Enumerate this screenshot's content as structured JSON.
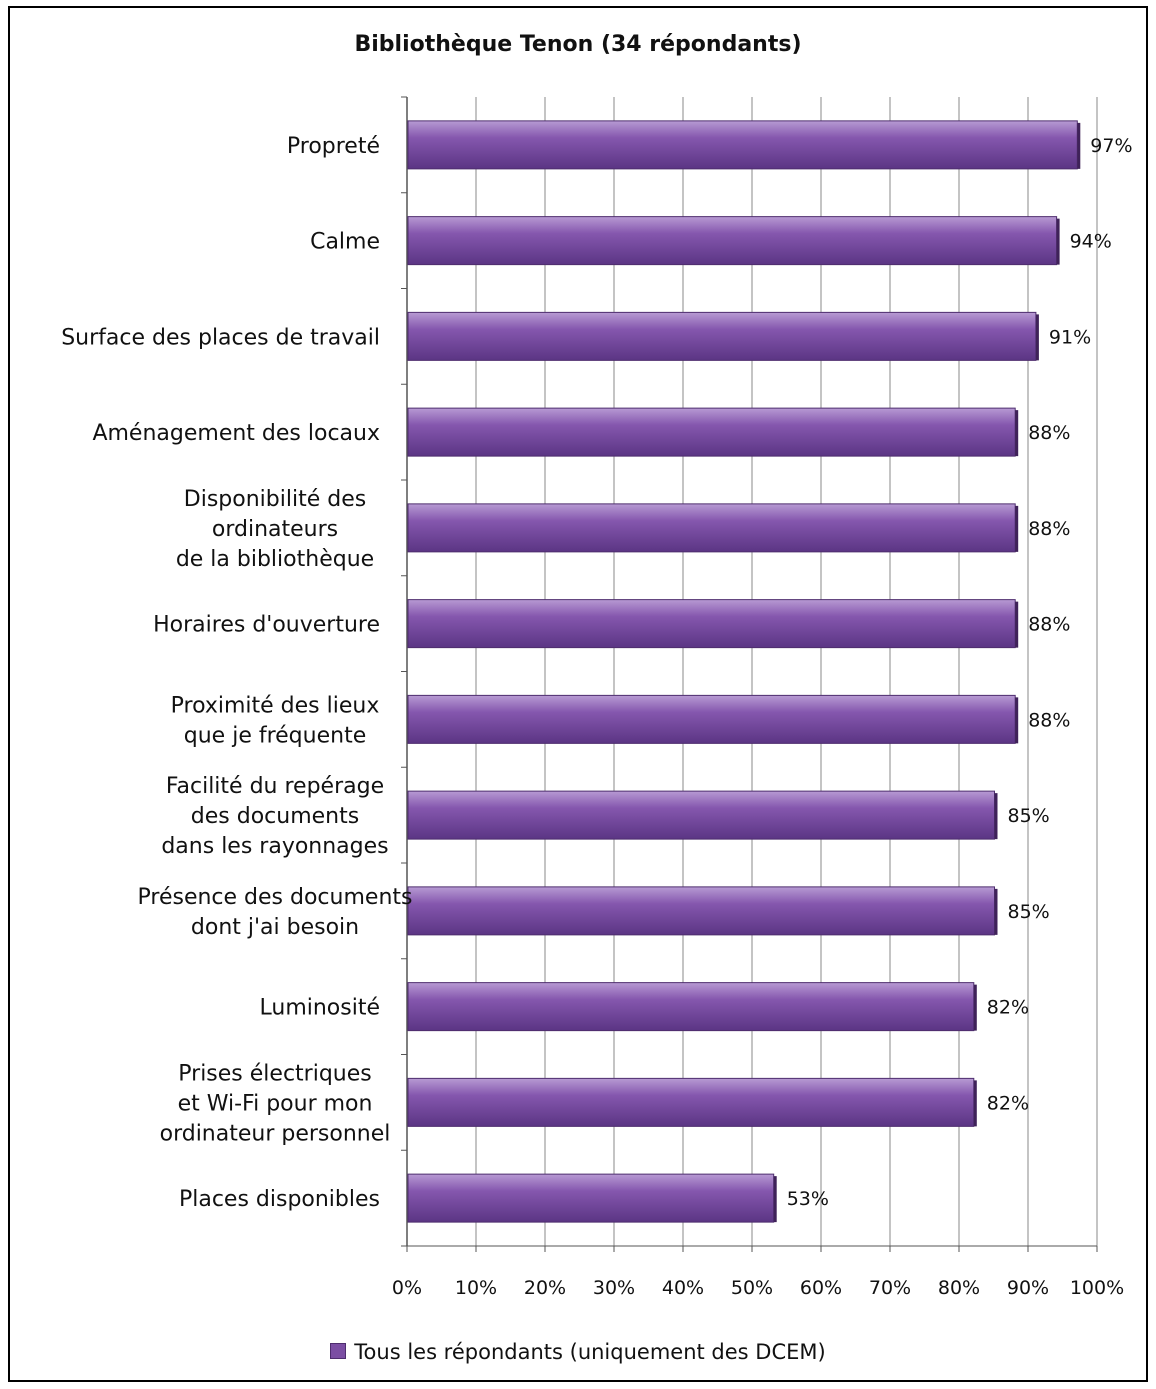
{
  "chart_data": {
    "type": "bar",
    "orientation": "horizontal",
    "title": "Bibliothèque Tenon (34 répondants)",
    "categories": [
      [
        "Propreté"
      ],
      [
        "Calme"
      ],
      [
        "Surface des places de travail"
      ],
      [
        "Aménagement des locaux"
      ],
      [
        "Disponibilité des",
        "ordinateurs",
        "de la bibliothèque"
      ],
      [
        "Horaires d'ouverture"
      ],
      [
        "Proximité des lieux",
        "que je fréquente"
      ],
      [
        "Facilité du repérage",
        "des documents",
        "dans les rayonnages"
      ],
      [
        "Présence des documents",
        "dont j'ai besoin"
      ],
      [
        "Luminosité"
      ],
      [
        "Prises électriques",
        "et Wi-Fi pour mon",
        "ordinateur personnel"
      ],
      [
        "Places disponibles"
      ]
    ],
    "series": [
      {
        "name": "Tous les répondants (uniquement des DCEM)",
        "values": [
          97,
          94,
          91,
          88,
          88,
          88,
          88,
          85,
          85,
          82,
          82,
          53
        ],
        "labels": [
          "97%",
          "94%",
          "91%",
          "88%",
          "88%",
          "88%",
          "88%",
          "85%",
          "85%",
          "82%",
          "82%",
          "53%"
        ]
      }
    ],
    "x_ticks": [
      "0%",
      "10%",
      "20%",
      "30%",
      "40%",
      "50%",
      "60%",
      "70%",
      "80%",
      "90%",
      "100%"
    ],
    "xlim": [
      0,
      100
    ],
    "grid": "vertical",
    "legend_position": "bottom",
    "bar_color": "#7b4ea3"
  }
}
